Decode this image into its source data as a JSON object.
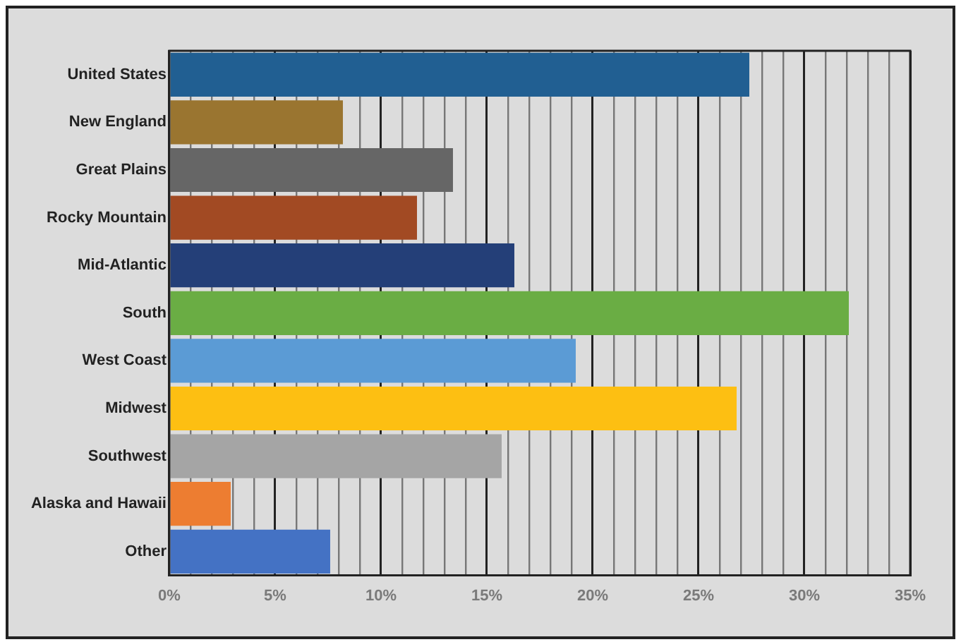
{
  "chart_data": {
    "type": "bar",
    "orientation": "horizontal",
    "categories": [
      "United States",
      "New England",
      "Great Plains",
      "Rocky Mountain",
      "Mid-Atlantic",
      "South",
      "West Coast",
      "Midwest",
      "Southwest",
      "Alaska and Hawaii",
      "Other"
    ],
    "values": [
      27.4,
      8.2,
      13.4,
      11.7,
      16.3,
      32.1,
      19.2,
      26.8,
      15.7,
      2.9,
      7.6
    ],
    "colors": [
      "#215f92",
      "#9a7530",
      "#666666",
      "#a24a23",
      "#243f78",
      "#6aad44",
      "#5b9bd5",
      "#fdbf12",
      "#a5a5a5",
      "#ed7d31",
      "#4472c4"
    ],
    "xlim": [
      0,
      35
    ],
    "xticks": [
      {
        "value": 0,
        "label": "0%"
      },
      {
        "value": 1,
        "label": null
      },
      {
        "value": 2,
        "label": null
      },
      {
        "value": 3,
        "label": null
      },
      {
        "value": 4,
        "label": null
      },
      {
        "value": 5,
        "label": "5%"
      },
      {
        "value": 6,
        "label": null
      },
      {
        "value": 7,
        "label": null
      },
      {
        "value": 8,
        "label": null
      },
      {
        "value": 9,
        "label": null
      },
      {
        "value": 10,
        "label": "10%"
      },
      {
        "value": 11,
        "label": null
      },
      {
        "value": 12,
        "label": null
      },
      {
        "value": 13,
        "label": null
      },
      {
        "value": 14,
        "label": null
      },
      {
        "value": 15,
        "label": "15%"
      },
      {
        "value": 16,
        "label": null
      },
      {
        "value": 17,
        "label": null
      },
      {
        "value": 18,
        "label": null
      },
      {
        "value": 19,
        "label": null
      },
      {
        "value": 20,
        "label": "20%"
      },
      {
        "value": 21,
        "label": null
      },
      {
        "value": 22,
        "label": null
      },
      {
        "value": 23,
        "label": null
      },
      {
        "value": 24,
        "label": null
      },
      {
        "value": 25,
        "label": "25%"
      },
      {
        "value": 26,
        "label": null
      },
      {
        "value": 27,
        "label": null
      },
      {
        "value": 28,
        "label": null
      },
      {
        "value": 29,
        "label": null
      },
      {
        "value": 30,
        "label": "30%"
      },
      {
        "value": 31,
        "label": null
      },
      {
        "value": 32,
        "label": null
      },
      {
        "value": 33,
        "label": null
      },
      {
        "value": 34,
        "label": null
      },
      {
        "value": 35,
        "label": "35%"
      }
    ],
    "grid": "x",
    "legend": false
  }
}
